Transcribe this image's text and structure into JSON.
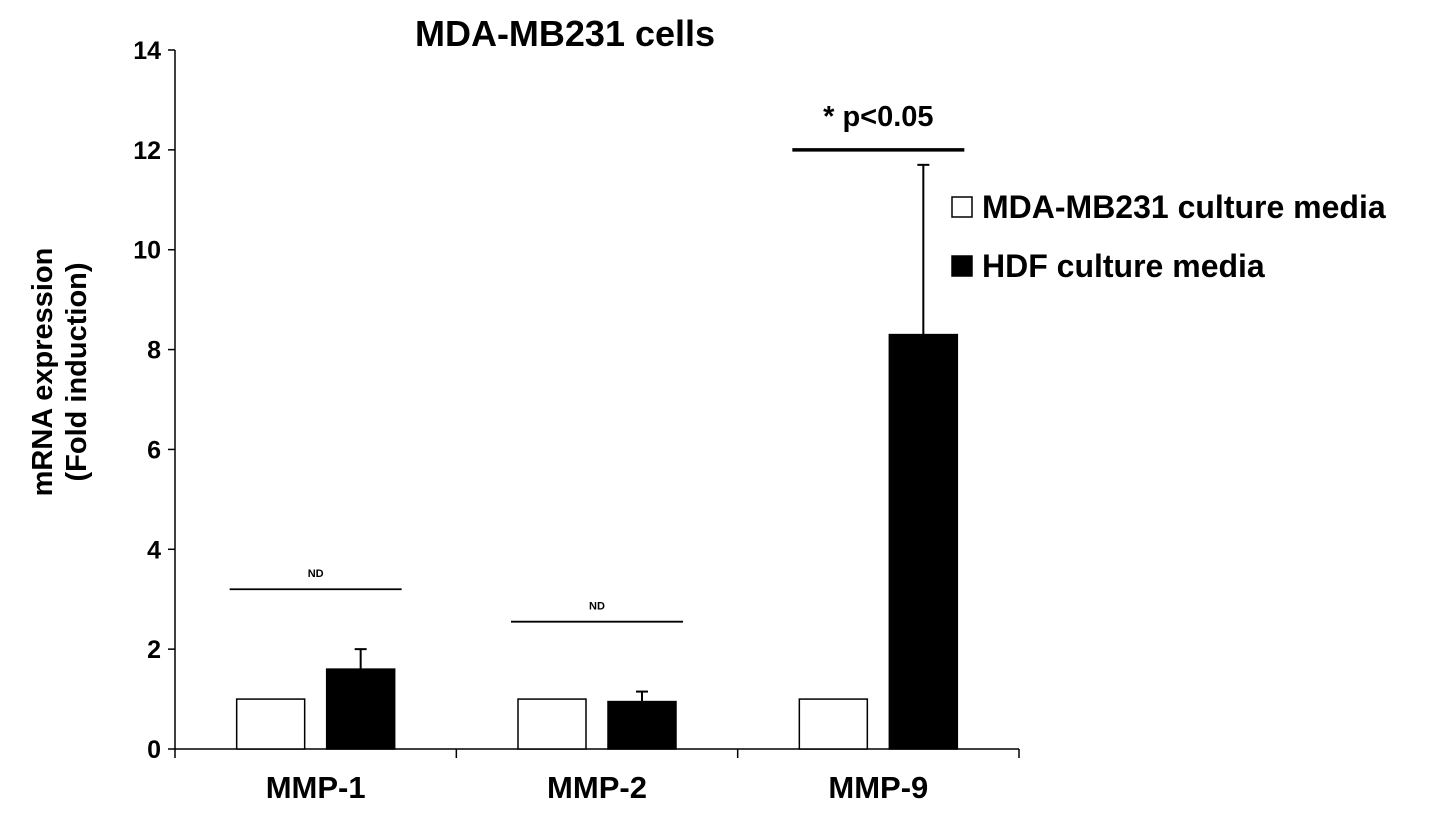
{
  "chart_data": {
    "type": "bar",
    "title": "MDA-MB231 cells",
    "ylabel_lines": [
      "mRNA expression",
      "(Fold induction)"
    ],
    "xlabel": "",
    "categories": [
      "MMP-1",
      "MMP-2",
      "MMP-9"
    ],
    "ylim": [
      0,
      14
    ],
    "yticks": [
      0,
      2,
      4,
      6,
      8,
      10,
      12,
      14
    ],
    "yticks_labels": [
      "0",
      "2",
      "4",
      "6",
      "8",
      "10",
      "12",
      "14"
    ],
    "series": [
      {
        "name": "MDA-MB231 culture media",
        "values": [
          1,
          1,
          1
        ],
        "errors": [
          0,
          0,
          0
        ],
        "color": "#ffffff"
      },
      {
        "name": "HDF culture media",
        "values": [
          1.6,
          0.95,
          8.3
        ],
        "errors": [
          0.4,
          0.2,
          3.4
        ],
        "color": "#000000"
      }
    ],
    "annotations": [
      {
        "category": "MMP-1",
        "text": "ND",
        "y": 3.2
      },
      {
        "category": "MMP-2",
        "text": "ND",
        "y": 2.55
      },
      {
        "category": "MMP-9",
        "text": "* p<0.05",
        "y": 12
      }
    ],
    "legend_position": "right",
    "grid": false
  }
}
